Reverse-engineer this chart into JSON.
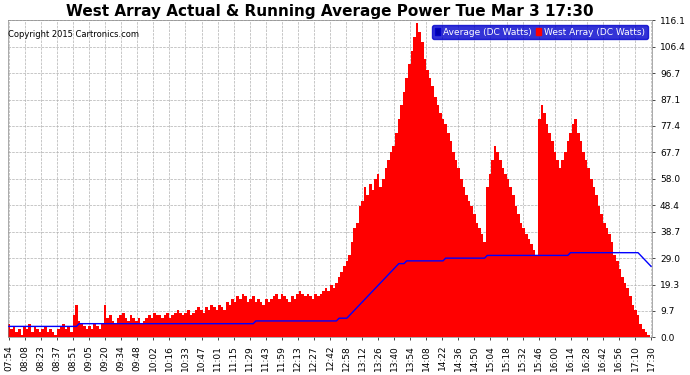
{
  "title": "West Array Actual & Running Average Power Tue Mar 3 17:30",
  "copyright": "Copyright 2015 Cartronics.com",
  "legend_avg": "Average (DC Watts)",
  "legend_west": "West Array (DC Watts)",
  "ylim": [
    0.0,
    116.1
  ],
  "yticks": [
    0.0,
    9.7,
    19.3,
    29.0,
    38.7,
    48.4,
    58.0,
    67.7,
    77.4,
    87.1,
    96.7,
    106.4,
    116.1
  ],
  "background_color": "#ffffff",
  "grid_color": "#b0b0b0",
  "bar_color": "#ff0000",
  "line_color": "#0000ff",
  "title_fontsize": 11,
  "tick_fontsize": 6.5,
  "x_tick_labels": [
    "07:54",
    "08:08",
    "08:23",
    "08:37",
    "08:51",
    "09:05",
    "09:20",
    "09:34",
    "09:48",
    "10:02",
    "10:16",
    "10:33",
    "10:47",
    "11:01",
    "11:15",
    "11:29",
    "11:43",
    "11:59",
    "12:13",
    "12:27",
    "12:42",
    "12:58",
    "13:12",
    "13:26",
    "13:40",
    "13:54",
    "14:08",
    "14:22",
    "14:36",
    "14:50",
    "15:04",
    "15:18",
    "15:32",
    "15:46",
    "16:00",
    "16:14",
    "16:28",
    "16:42",
    "16:56",
    "17:10",
    "17:30"
  ],
  "west_array_values": [
    5,
    3,
    4,
    2,
    3,
    1,
    4,
    3,
    5,
    2,
    4,
    3,
    2,
    3,
    4,
    2,
    3,
    2,
    1,
    3,
    4,
    5,
    3,
    4,
    2,
    8,
    12,
    6,
    5,
    4,
    3,
    4,
    3,
    5,
    4,
    3,
    5,
    12,
    7,
    8,
    6,
    5,
    7,
    8,
    9,
    7,
    6,
    8,
    7,
    6,
    7,
    5,
    6,
    7,
    8,
    7,
    9,
    8,
    8,
    7,
    8,
    9,
    7,
    8,
    9,
    10,
    9,
    8,
    9,
    10,
    8,
    9,
    10,
    11,
    10,
    9,
    11,
    10,
    12,
    11,
    10,
    12,
    11,
    10,
    13,
    12,
    14,
    13,
    15,
    14,
    16,
    15,
    13,
    14,
    15,
    13,
    14,
    13,
    12,
    14,
    13,
    14,
    15,
    16,
    14,
    16,
    15,
    14,
    13,
    15,
    14,
    16,
    17,
    16,
    15,
    16,
    15,
    14,
    16,
    15,
    16,
    17,
    18,
    17,
    19,
    18,
    20,
    22,
    24,
    26,
    28,
    30,
    35,
    40,
    42,
    48,
    50,
    55,
    52,
    56,
    54,
    58,
    60,
    55,
    58,
    62,
    65,
    68,
    70,
    75,
    80,
    85,
    90,
    95,
    100,
    105,
    110,
    115,
    112,
    108,
    102,
    98,
    95,
    92,
    88,
    85,
    82,
    80,
    78,
    75,
    72,
    68,
    65,
    62,
    58,
    55,
    52,
    50,
    48,
    45,
    42,
    40,
    38,
    35,
    55,
    60,
    65,
    70,
    68,
    65,
    62,
    60,
    58,
    55,
    52,
    48,
    45,
    42,
    40,
    38,
    36,
    34,
    32,
    30,
    80,
    85,
    82,
    78,
    75,
    72,
    68,
    65,
    62,
    65,
    68,
    72,
    75,
    78,
    80,
    75,
    72,
    68,
    65,
    62,
    58,
    55,
    52,
    48,
    45,
    42,
    40,
    38,
    35,
    30,
    28,
    25,
    22,
    20,
    18,
    15,
    12,
    10,
    8,
    5,
    3,
    2,
    1,
    0
  ],
  "avg_values": [
    4,
    4,
    4,
    4,
    4,
    4,
    4,
    4,
    4,
    4,
    4,
    4,
    4,
    4,
    4,
    4,
    4,
    4,
    4,
    4,
    4,
    4,
    4,
    4,
    4,
    4,
    4,
    5,
    5,
    5,
    5,
    5,
    5,
    5,
    5,
    5,
    5,
    5,
    5,
    5,
    5,
    5,
    5,
    5,
    5,
    5,
    5,
    5,
    5,
    5,
    5,
    5,
    5,
    5,
    5,
    5,
    5,
    5,
    5,
    5,
    5,
    5,
    5,
    5,
    5,
    5,
    5,
    5,
    5,
    5,
    5,
    5,
    5,
    5,
    5,
    5,
    5,
    5,
    5,
    5,
    5,
    5,
    5,
    5,
    5,
    5,
    5,
    5,
    5,
    5,
    5,
    5,
    5,
    5,
    5,
    6,
    6,
    6,
    6,
    6,
    6,
    6,
    6,
    6,
    6,
    6,
    6,
    6,
    6,
    6,
    6,
    6,
    6,
    6,
    6,
    6,
    6,
    6,
    6,
    6,
    6,
    6,
    6,
    6,
    6,
    6,
    6,
    7,
    7,
    7,
    7,
    8,
    9,
    10,
    11,
    12,
    13,
    14,
    15,
    16,
    17,
    18,
    19,
    20,
    21,
    22,
    23,
    24,
    25,
    26,
    27,
    27,
    27,
    28,
    28,
    28,
    28,
    28,
    28,
    28,
    28,
    28,
    28,
    28,
    28,
    28,
    28,
    28,
    29,
    29,
    29,
    29,
    29,
    29,
    29,
    29,
    29,
    29,
    29,
    29,
    29,
    29,
    29,
    29,
    30,
    30,
    30,
    30,
    30,
    30,
    30,
    30,
    30,
    30,
    30,
    30,
    30,
    30,
    30,
    30,
    30,
    30,
    30,
    30,
    30,
    30,
    30,
    30,
    30,
    30,
    30,
    30,
    30,
    30,
    30,
    30,
    31,
    31,
    31,
    31,
    31,
    31,
    31,
    31,
    31,
    31,
    31,
    31,
    31,
    31,
    31,
    31,
    31,
    31,
    31,
    31,
    31,
    31,
    31,
    31,
    31,
    31,
    31,
    30,
    29,
    28,
    27,
    26
  ],
  "n_total": 248
}
